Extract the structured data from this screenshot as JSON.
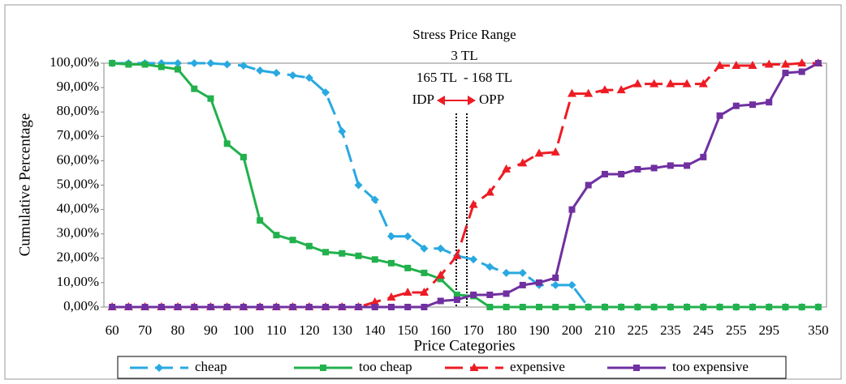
{
  "chart_data": {
    "type": "line",
    "title": "Stress Price Range",
    "annotations": [
      "3 TL",
      "165 TL  - 168 TL",
      "IDP",
      "OPP"
    ],
    "x_label": "Price Categories",
    "y_label": "Cumulative Percentage",
    "categories": [
      "60",
      null,
      "70",
      null,
      "80",
      null,
      "90",
      null,
      "100",
      null,
      "110",
      null,
      "120",
      null,
      "130",
      null,
      "140",
      null,
      "150",
      null,
      "160",
      null,
      "170",
      null,
      "180",
      null,
      "190",
      null,
      "200",
      null,
      "210",
      null,
      "225",
      null,
      "235",
      null,
      "245",
      null,
      "255",
      null,
      "295",
      null,
      null,
      "350"
    ],
    "ylim": [
      0,
      100
    ],
    "yticks": [
      {
        "value": 0,
        "label": "0,00%"
      },
      {
        "value": 10,
        "label": "10,00%"
      },
      {
        "value": 20,
        "label": "20,00%"
      },
      {
        "value": 30,
        "label": "30,00%"
      },
      {
        "value": 40,
        "label": "40,00%"
      },
      {
        "value": 50,
        "label": "50,00%"
      },
      {
        "value": 60,
        "label": "60,00%"
      },
      {
        "value": 70,
        "label": "70,00%"
      },
      {
        "value": 80,
        "label": "80,00%"
      },
      {
        "value": 90,
        "label": "90,00%"
      },
      {
        "value": 100,
        "label": "100,00%"
      }
    ],
    "grid": false,
    "legend": "bottom",
    "series": [
      {
        "name": "cheap",
        "color": "#29a9e1",
        "marker": "diamond",
        "dashed": true,
        "values": [
          100,
          100,
          100,
          100,
          100,
          100,
          100,
          99.5,
          99,
          97,
          96,
          95,
          94,
          88,
          72,
          50,
          44,
          29,
          29,
          24,
          24,
          21,
          19.5,
          16.5,
          14,
          14,
          9,
          9,
          9,
          0,
          0,
          0,
          0,
          0,
          0,
          0,
          0,
          0,
          0,
          0,
          0,
          0,
          0,
          0
        ]
      },
      {
        "name": "too cheap",
        "color": "#22b14c",
        "marker": "square",
        "dashed": false,
        "values": [
          100,
          99.5,
          99.5,
          98.5,
          97.5,
          89.5,
          85.5,
          67,
          61.5,
          35.5,
          29.5,
          27.5,
          25,
          22.5,
          22,
          21,
          19.5,
          18,
          16,
          14,
          11.5,
          5,
          4.5,
          0,
          0,
          0,
          0,
          0,
          0,
          0,
          0,
          0,
          0,
          0,
          0,
          0,
          0,
          0,
          0,
          0,
          0,
          0,
          0,
          0
        ]
      },
      {
        "name": "expensive",
        "color": "#ed1c24",
        "marker": "triangle",
        "dashed": true,
        "values": [
          0,
          0,
          0,
          0,
          0,
          0,
          0,
          0,
          0,
          0,
          0,
          0,
          0,
          0,
          0,
          0,
          2,
          4,
          6,
          6,
          13,
          21,
          42,
          47,
          56.5,
          59,
          63,
          63.5,
          87.5,
          87.5,
          89,
          89,
          91.5,
          91.5,
          91.5,
          91.5,
          91.5,
          99,
          99,
          99,
          99.5,
          99.5,
          100,
          100
        ]
      },
      {
        "name": "too expensive",
        "color": "#7030a0",
        "marker": "square",
        "dashed": false,
        "values": [
          0,
          0,
          0,
          0,
          0,
          0,
          0,
          0,
          0,
          0,
          0,
          0,
          0,
          0,
          0,
          0,
          0,
          0,
          0,
          0,
          2.5,
          3,
          5,
          5,
          5.5,
          9,
          10,
          12,
          40,
          50,
          54.5,
          54.5,
          56.5,
          57,
          58,
          58,
          61.5,
          78.5,
          82.5,
          83,
          84,
          96,
          96.5,
          100
        ]
      }
    ]
  }
}
